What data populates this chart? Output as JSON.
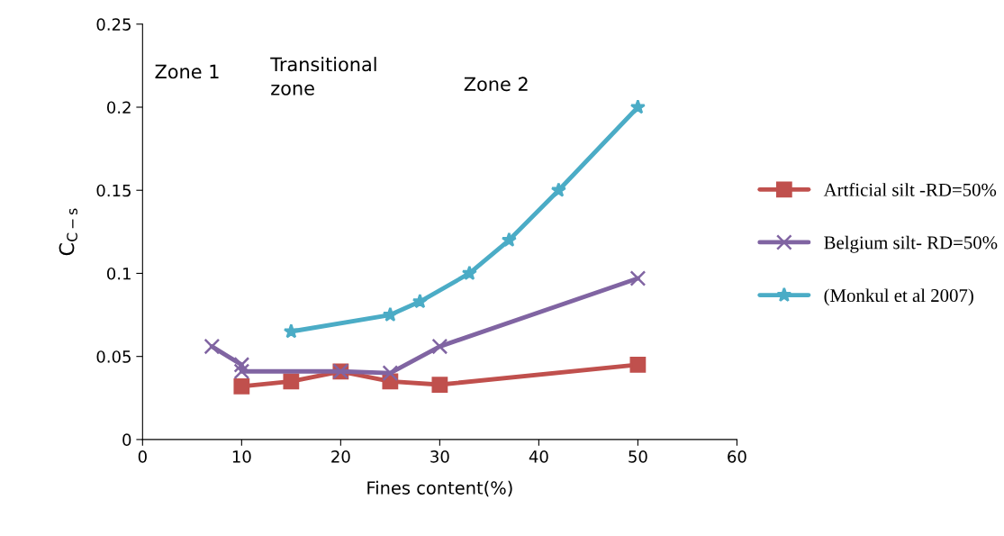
{
  "chart_data": {
    "type": "line",
    "xlabel": "Fines content(%)",
    "ylabel": "C$_{C−s}$",
    "xlim": [
      0,
      60
    ],
    "xticks": [
      0,
      10,
      20,
      30,
      40,
      50,
      60
    ],
    "ylim": [
      0,
      0.25
    ],
    "yticks": [
      0,
      0.05,
      0.1,
      0.15,
      0.2,
      0.25
    ],
    "grid": false,
    "legend": "right",
    "annotations": [
      "Zone 1",
      "Transitional\nzone",
      "Zone 2"
    ],
    "series": [
      {
        "name": "Artficial silt -RD=50%",
        "color": "#c0504d",
        "marker": "square",
        "x": [
          10,
          15,
          20,
          25,
          30,
          50
        ],
        "values": [
          0.032,
          0.035,
          0.041,
          0.035,
          0.033,
          0.045
        ]
      },
      {
        "name": "Belgium silt- RD=50%",
        "color": "#8064a2",
        "marker": "cross",
        "x": [
          7,
          10,
          10,
          20,
          25,
          30,
          50
        ],
        "values": [
          0.056,
          0.045,
          0.041,
          0.041,
          0.04,
          0.056,
          0.097
        ]
      },
      {
        "name": "(Monkul et al 2007)",
        "color": "#4bacc6",
        "marker": "star",
        "x": [
          15,
          25,
          28,
          33,
          37,
          42,
          50
        ],
        "values": [
          0.065,
          0.075,
          0.083,
          0.1,
          0.12,
          0.15,
          0.2
        ]
      }
    ]
  }
}
